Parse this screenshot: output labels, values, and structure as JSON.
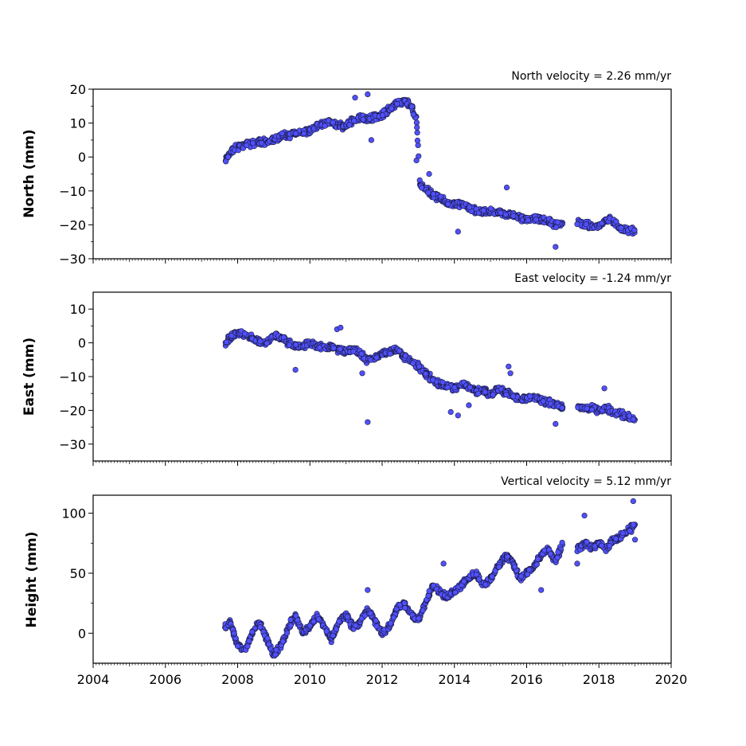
{
  "chart_data": [
    {
      "type": "scatter",
      "annotation": "North velocity = 2.26 mm/yr",
      "ylabel": "North (mm)",
      "xlim": [
        2004,
        2020
      ],
      "ylim": [
        -30,
        20
      ],
      "yticks": [
        20,
        10,
        0,
        -10,
        -20,
        -30
      ],
      "ytick_labels": [
        "20",
        "10",
        "0",
        "−10",
        "−20",
        "−30"
      ],
      "x": [
        2007.65,
        2007.8,
        2008.0,
        2008.2,
        2008.4,
        2008.6,
        2008.8,
        2009.0,
        2009.2,
        2009.4,
        2009.6,
        2009.8,
        2010.0,
        2010.2,
        2010.4,
        2010.6,
        2010.8,
        2011.0,
        2011.2,
        2011.4,
        2011.6,
        2011.8,
        2012.0,
        2012.2,
        2012.4,
        2012.6,
        2012.8,
        2012.95,
        2013.05,
        2013.2,
        2013.4,
        2013.6,
        2013.8,
        2014.0,
        2014.2,
        2014.4,
        2014.6,
        2014.8,
        2015.0,
        2015.2,
        2015.4,
        2015.6,
        2015.8,
        2016.0,
        2016.2,
        2016.4,
        2016.6,
        2016.8,
        2017.0,
        2017.4,
        2017.6,
        2017.8,
        2018.0,
        2018.2,
        2018.4,
        2018.6,
        2018.8,
        2019.0
      ],
      "y": [
        -1.5,
        1.5,
        3.0,
        3.5,
        4.0,
        4.5,
        4.5,
        5.0,
        6.0,
        6.5,
        7.0,
        7.5,
        8.0,
        9.0,
        10.0,
        10.5,
        9.0,
        9.5,
        11.0,
        11.5,
        11.0,
        12.0,
        12.5,
        14.0,
        16.0,
        16.5,
        15.0,
        11.0,
        -8.0,
        -9.5,
        -11.0,
        -12.5,
        -13.5,
        -14.0,
        -14.0,
        -15.0,
        -16.0,
        -16.5,
        -16.0,
        -16.5,
        -17.0,
        -17.0,
        -18.0,
        -18.5,
        -18.0,
        -18.5,
        -19.0,
        -20.0,
        -19.5,
        -19.0,
        -20.0,
        -20.5,
        -20.5,
        -18.5,
        -19.0,
        -21.0,
        -21.5,
        -22.0
      ],
      "outliers": {
        "x": [
          2011.25,
          2011.6,
          2011.7,
          2012.95,
          2013.3,
          2014.1,
          2015.45,
          2016.8
        ],
        "y": [
          17.5,
          18.5,
          5.0,
          -1.0,
          -5.0,
          -22.0,
          -9.0,
          -26.5
        ]
      },
      "color": "#5050ff"
    },
    {
      "type": "scatter",
      "annotation": "East velocity = -1.24 mm/yr",
      "ylabel": "East (mm)",
      "xlim": [
        2004,
        2020
      ],
      "ylim": [
        -35,
        15
      ],
      "yticks": [
        10,
        0,
        -10,
        -20,
        -30
      ],
      "ytick_labels": [
        "10",
        "0",
        "−10",
        "−20",
        "−30"
      ],
      "x": [
        2007.65,
        2007.8,
        2008.0,
        2008.2,
        2008.4,
        2008.6,
        2008.8,
        2009.0,
        2009.2,
        2009.4,
        2009.6,
        2009.8,
        2010.0,
        2010.2,
        2010.4,
        2010.6,
        2010.8,
        2011.0,
        2011.2,
        2011.4,
        2011.6,
        2011.8,
        2012.0,
        2012.2,
        2012.4,
        2012.6,
        2012.8,
        2013.0,
        2013.2,
        2013.4,
        2013.6,
        2013.8,
        2014.0,
        2014.2,
        2014.4,
        2014.6,
        2014.8,
        2015.0,
        2015.2,
        2015.4,
        2015.6,
        2015.8,
        2016.0,
        2016.2,
        2016.4,
        2016.6,
        2016.8,
        2017.0,
        2017.4,
        2017.6,
        2017.8,
        2018.0,
        2018.2,
        2018.4,
        2018.6,
        2018.8,
        2019.0
      ],
      "y": [
        0.0,
        1.5,
        3.0,
        2.5,
        1.5,
        0.5,
        0.0,
        2.5,
        1.5,
        0.0,
        -1.0,
        -1.0,
        0.0,
        -1.0,
        -1.5,
        -1.0,
        -2.0,
        -2.5,
        -2.0,
        -3.5,
        -5.0,
        -4.5,
        -3.0,
        -2.5,
        -2.0,
        -4.0,
        -5.5,
        -7.0,
        -9.0,
        -11.0,
        -12.5,
        -13.0,
        -13.5,
        -12.0,
        -13.0,
        -14.5,
        -14.0,
        -15.0,
        -14.0,
        -14.5,
        -15.5,
        -16.5,
        -16.5,
        -16.0,
        -17.0,
        -17.5,
        -18.5,
        -19.0,
        -19.0,
        -19.5,
        -19.5,
        -20.0,
        -19.5,
        -20.5,
        -21.0,
        -22.0,
        -22.5
      ],
      "outliers": {
        "x": [
          2009.6,
          2010.75,
          2010.85,
          2011.45,
          2011.6,
          2013.9,
          2014.1,
          2014.4,
          2015.5,
          2015.55,
          2016.8,
          2018.15
        ],
        "y": [
          -8.0,
          4.0,
          4.5,
          -9.0,
          -23.5,
          -20.5,
          -21.5,
          -18.5,
          -7.0,
          -9.0,
          -24.0,
          -13.5
        ]
      },
      "color": "#5050ff"
    },
    {
      "type": "scatter",
      "annotation": "Vertical velocity = 5.12 mm/yr",
      "ylabel": "Height (mm)",
      "xlim": [
        2004,
        2020
      ],
      "ylim": [
        -25,
        115
      ],
      "yticks": [
        100,
        50,
        0
      ],
      "ytick_labels": [
        "100",
        "50",
        "0"
      ],
      "x": [
        2007.65,
        2007.8,
        2008.0,
        2008.2,
        2008.4,
        2008.6,
        2008.8,
        2009.0,
        2009.2,
        2009.4,
        2009.6,
        2009.8,
        2010.0,
        2010.2,
        2010.4,
        2010.6,
        2010.8,
        2011.0,
        2011.2,
        2011.4,
        2011.6,
        2011.8,
        2012.0,
        2012.2,
        2012.4,
        2012.6,
        2012.8,
        2013.0,
        2013.2,
        2013.4,
        2013.6,
        2013.8,
        2014.0,
        2014.2,
        2014.4,
        2014.6,
        2014.8,
        2015.0,
        2015.2,
        2015.4,
        2015.6,
        2015.8,
        2016.0,
        2016.2,
        2016.4,
        2016.6,
        2016.8,
        2017.0,
        2017.4,
        2017.6,
        2017.8,
        2018.0,
        2018.2,
        2018.4,
        2018.6,
        2018.8,
        2019.0
      ],
      "y": [
        5.0,
        8.0,
        -10.0,
        -15.0,
        0.0,
        10.0,
        -5.0,
        -18.0,
        -10.0,
        5.0,
        15.0,
        0.0,
        5.0,
        15.0,
        5.0,
        -5.0,
        10.0,
        15.0,
        5.0,
        10.0,
        20.0,
        10.0,
        0.0,
        5.0,
        20.0,
        25.0,
        15.0,
        10.0,
        25.0,
        40.0,
        35.0,
        30.0,
        35.0,
        40.0,
        45.0,
        50.0,
        40.0,
        45.0,
        55.0,
        65.0,
        60.0,
        45.0,
        50.0,
        55.0,
        65.0,
        70.0,
        60.0,
        75.0,
        70.0,
        75.0,
        72.0,
        75.0,
        70.0,
        78.0,
        80.0,
        85.0,
        90.0
      ],
      "outliers": {
        "x": [
          2011.6,
          2013.7,
          2016.4,
          2017.6,
          2018.95,
          2019.0,
          2017.4
        ],
        "y": [
          36.0,
          58.0,
          36.0,
          98.0,
          110.0,
          78.0,
          58.0
        ]
      },
      "color": "#5050ff"
    }
  ],
  "x_axis": {
    "ticks": [
      2004,
      2006,
      2008,
      2010,
      2012,
      2014,
      2016,
      2018,
      2020
    ],
    "tick_labels": [
      "2004",
      "2006",
      "2008",
      "2010",
      "2012",
      "2014",
      "2016",
      "2018",
      "2020"
    ]
  }
}
